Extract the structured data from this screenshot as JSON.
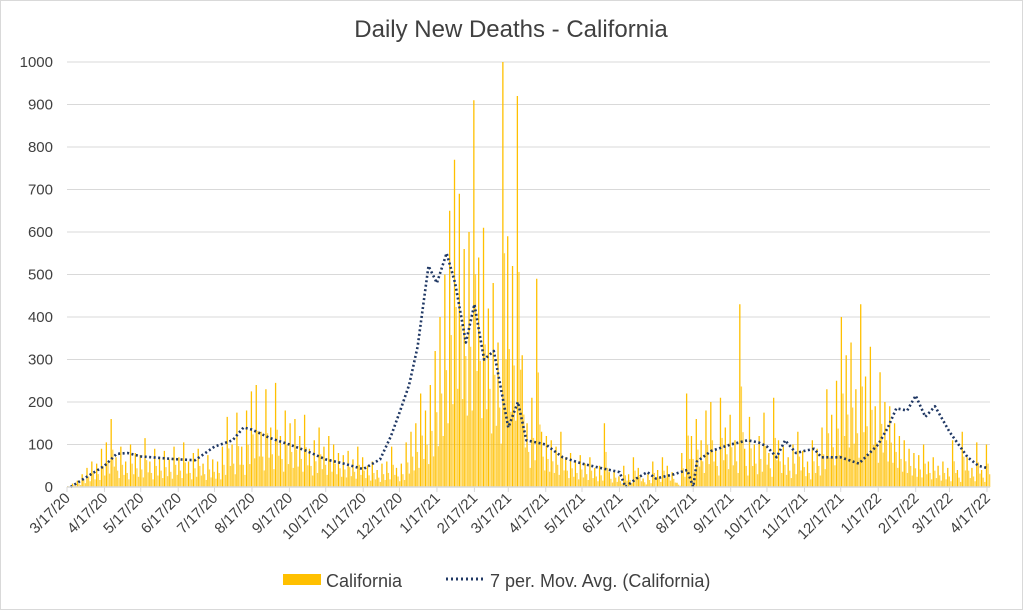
{
  "chart_data": {
    "type": "bar",
    "title": "Daily New Deaths - California",
    "xlabel": "",
    "ylabel": "",
    "ylim": [
      0,
      1000
    ],
    "yticks": [
      "0",
      "100",
      "200",
      "300",
      "400",
      "500",
      "600",
      "700",
      "800",
      "900",
      "1000"
    ],
    "xticks": [
      "3/17/20",
      "4/17/20",
      "5/17/20",
      "6/17/20",
      "7/17/20",
      "8/17/20",
      "9/17/20",
      "10/17/20",
      "11/17/20",
      "12/17/20",
      "1/17/21",
      "2/17/21",
      "3/17/21",
      "4/17/21",
      "5/17/21",
      "6/17/21",
      "7/17/21",
      "8/17/21",
      "9/17/21",
      "10/17/21",
      "11/17/21",
      "12/17/21",
      "1/17/22",
      "2/17/22",
      "3/17/22",
      "4/17/22"
    ],
    "xtick_days": [
      0,
      31,
      61,
      92,
      122,
      153,
      184,
      214,
      245,
      275,
      306,
      337,
      365,
      396,
      426,
      457,
      487,
      518,
      549,
      579,
      610,
      640,
      671,
      702,
      730,
      761
    ],
    "x_start": "3/17/20",
    "x_end_day": 761,
    "grid": true,
    "legend_position": "bottom",
    "colors": {
      "bars": "#FFC000",
      "moving_avg": "#203864",
      "grid": "#d9d9d9"
    },
    "series": [
      {
        "name": "California",
        "type": "bar",
        "step_days": 4,
        "values": [
          2,
          8,
          15,
          30,
          45,
          60,
          55,
          90,
          105,
          160,
          70,
          95,
          60,
          100,
          80,
          75,
          115,
          60,
          90,
          70,
          85,
          65,
          95,
          70,
          105,
          60,
          80,
          90,
          55,
          75,
          65,
          60,
          95,
          165,
          100,
          175,
          95,
          180,
          225,
          240,
          130,
          230,
          140,
          245,
          120,
          180,
          150,
          160,
          120,
          170,
          90,
          110,
          140,
          95,
          120,
          100,
          80,
          75,
          85,
          65,
          95,
          70,
          50,
          60,
          40,
          55,
          60,
          95,
          45,
          55,
          105,
          130,
          150,
          220,
          180,
          240,
          320,
          400,
          500,
          650,
          770,
          690,
          560,
          600,
          910,
          540,
          610,
          420,
          480,
          340,
          1000,
          590,
          520,
          920,
          310,
          150,
          210,
          490,
          130,
          120,
          110,
          95,
          130,
          70,
          80,
          60,
          75,
          55,
          70,
          45,
          50,
          150,
          35,
          40,
          25,
          50,
          30,
          70,
          45,
          20,
          30,
          60,
          40,
          70,
          50,
          35,
          10,
          80,
          220,
          120,
          160,
          110,
          180,
          200,
          90,
          210,
          140,
          170,
          110,
          430,
          90,
          165,
          100,
          120,
          175,
          80,
          210,
          110,
          95,
          70,
          100,
          130,
          85,
          60,
          110,
          90,
          140,
          230,
          170,
          250,
          400,
          310,
          340,
          230,
          430,
          260,
          330,
          190,
          270,
          200,
          190,
          150,
          120,
          110,
          90,
          80,
          75,
          100,
          60,
          70,
          50,
          60,
          45,
          110,
          40,
          130,
          70,
          45,
          105,
          40,
          100
        ]
      },
      {
        "name": "7 per. Mov. Avg. (California)",
        "type": "line",
        "points_day_value": [
          [
            3,
            0
          ],
          [
            31,
            50
          ],
          [
            41,
            78
          ],
          [
            50,
            80
          ],
          [
            61,
            72
          ],
          [
            92,
            65
          ],
          [
            106,
            63
          ],
          [
            122,
            95
          ],
          [
            137,
            110
          ],
          [
            146,
            140
          ],
          [
            153,
            135
          ],
          [
            168,
            115
          ],
          [
            184,
            100
          ],
          [
            198,
            85
          ],
          [
            214,
            65
          ],
          [
            229,
            55
          ],
          [
            245,
            42
          ],
          [
            259,
            65
          ],
          [
            268,
            120
          ],
          [
            275,
            175
          ],
          [
            283,
            240
          ],
          [
            290,
            330
          ],
          [
            299,
            520
          ],
          [
            306,
            480
          ],
          [
            314,
            550
          ],
          [
            321,
            480
          ],
          [
            330,
            340
          ],
          [
            337,
            430
          ],
          [
            345,
            300
          ],
          [
            353,
            320
          ],
          [
            365,
            140
          ],
          [
            373,
            200
          ],
          [
            380,
            110
          ],
          [
            396,
            100
          ],
          [
            410,
            70
          ],
          [
            426,
            55
          ],
          [
            441,
            45
          ],
          [
            457,
            35
          ],
          [
            462,
            0
          ],
          [
            471,
            20
          ],
          [
            480,
            35
          ],
          [
            487,
            20
          ],
          [
            502,
            30
          ],
          [
            513,
            40
          ],
          [
            518,
            0
          ],
          [
            521,
            60
          ],
          [
            533,
            85
          ],
          [
            549,
            100
          ],
          [
            563,
            110
          ],
          [
            572,
            105
          ],
          [
            579,
            95
          ],
          [
            587,
            70
          ],
          [
            594,
            110
          ],
          [
            603,
            80
          ],
          [
            610,
            85
          ],
          [
            618,
            90
          ],
          [
            624,
            70
          ],
          [
            640,
            70
          ],
          [
            655,
            55
          ],
          [
            671,
            100
          ],
          [
            679,
            140
          ],
          [
            686,
            185
          ],
          [
            695,
            180
          ],
          [
            702,
            215
          ],
          [
            710,
            165
          ],
          [
            718,
            190
          ],
          [
            730,
            130
          ],
          [
            745,
            70
          ],
          [
            754,
            50
          ],
          [
            761,
            45
          ]
        ]
      }
    ]
  }
}
